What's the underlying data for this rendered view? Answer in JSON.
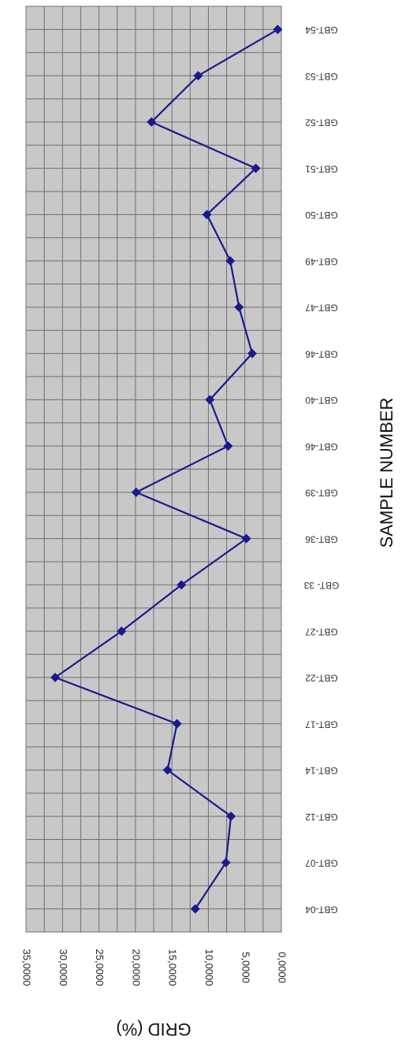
{
  "chart_data": {
    "type": "line",
    "xlabel": "SAMPLE NUMBER",
    "ylabel": "GRID (%)",
    "ylim": [
      0,
      35
    ],
    "ytick_labels": [
      "35,0000",
      "30,0000",
      "25,0000",
      "20,0000",
      "15,0000",
      "10,0000",
      "5,0000",
      "0,0000"
    ],
    "categories": [
      "GBT-04",
      "GBT-07",
      "GBT-12",
      "GBT-14",
      "GBT-17",
      "GBT-22",
      "GBT-27",
      "GBT- 33",
      "GBT-36",
      "GBT-39",
      "GBT-46",
      "GBT-40",
      "GBT-46",
      "GBT-47",
      "GBT-49",
      "GBT-50",
      "GBT-51",
      "GBT-52",
      "GBT-53",
      "GBT-54"
    ],
    "series": [
      {
        "values": [
          11.8,
          7.6,
          6.9,
          15.6,
          14.3,
          31.0,
          21.9,
          13.7,
          4.8,
          19.9,
          7.3,
          9.8,
          4.0,
          5.8,
          7.0,
          10.2,
          3.5,
          17.8,
          11.4,
          0.5
        ]
      }
    ],
    "grid": true,
    "rotation": "chart rotated 90 degrees clockwise",
    "colors": {
      "line": "#1a1a8c",
      "plot_bg": "#c8c8c8",
      "grid": "#707070"
    }
  }
}
